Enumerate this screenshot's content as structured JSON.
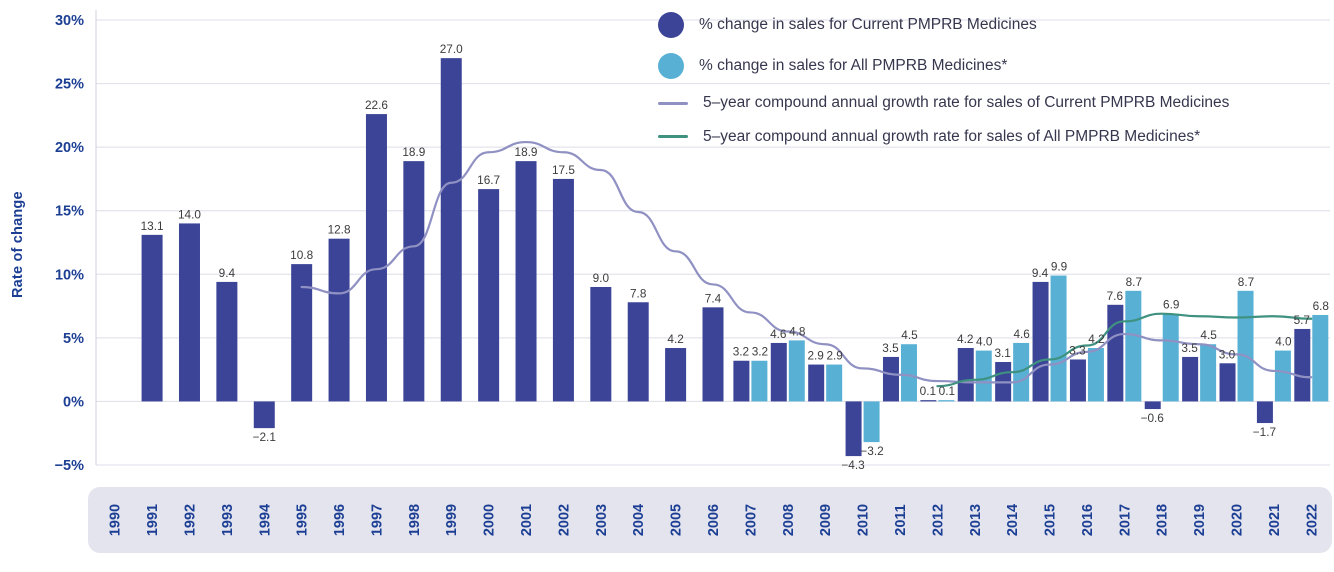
{
  "figure": {
    "ylabel": "Rate of change"
  },
  "colors": {
    "current_bar": "#3b4496",
    "all_bar": "#58b1d5",
    "current_line": "#9091c3",
    "all_line": "#3f9180",
    "axis_text": "#1c3f94",
    "gridline": "#dedee8",
    "band": "#e4e4ef",
    "value_label": "#3c3c3c"
  },
  "legend": {
    "items": [
      {
        "label": "% change in sales for Current PMPRB Medicines",
        "marker": "circle",
        "color": "#3b4496"
      },
      {
        "label": "% change in sales for All PMPRB Medicines*",
        "marker": "circle",
        "color": "#58b1d5"
      },
      {
        "label": "5–year compound annual growth rate for sales of Current PMPRB Medicines",
        "marker": "line",
        "color": "#9091c3"
      },
      {
        "label": "5–year compound annual growth rate for sales of All PMPRB Medicines*",
        "marker": "line",
        "color": "#3f9180"
      }
    ]
  },
  "chart_data": {
    "type": "bar",
    "title": "",
    "xlabel": "",
    "ylabel": "Rate of change",
    "ylim": [
      -5,
      30
    ],
    "grid": true,
    "legend_position": "top-right",
    "yticks": [
      {
        "value": 30,
        "label": "30%"
      },
      {
        "value": 25,
        "label": "25%"
      },
      {
        "value": 20,
        "label": "20%"
      },
      {
        "value": 15,
        "label": "15%"
      },
      {
        "value": 10,
        "label": "10%"
      },
      {
        "value": 5,
        "label": "5%"
      },
      {
        "value": 0,
        "label": "0%"
      },
      {
        "value": -5,
        "label": "−5%"
      }
    ],
    "categories": [
      "1990",
      "1991",
      "1992",
      "1993",
      "1994",
      "1995",
      "1996",
      "1997",
      "1998",
      "1999",
      "2000",
      "2001",
      "2002",
      "2003",
      "2004",
      "2005",
      "2006",
      "2007",
      "2008",
      "2009",
      "2010",
      "2011",
      "2012",
      "2013",
      "2014",
      "2015",
      "2016",
      "2017",
      "2018",
      "2019",
      "2020",
      "2021",
      "2022"
    ],
    "series": [
      {
        "name": "% change in sales for Current PMPRB Medicines",
        "type": "bar",
        "color": "#3b4496",
        "values": [
          null,
          13.1,
          14.0,
          9.4,
          -2.1,
          10.8,
          12.8,
          22.6,
          18.9,
          27.0,
          16.7,
          18.9,
          17.5,
          9.0,
          7.8,
          4.2,
          7.4,
          3.2,
          4.6,
          2.9,
          -4.3,
          3.5,
          0.1,
          4.2,
          3.1,
          9.4,
          3.3,
          7.6,
          -0.6,
          3.5,
          3.0,
          -1.7,
          5.7
        ]
      },
      {
        "name": "% change in sales for All PMPRB Medicines*",
        "type": "bar",
        "color": "#58b1d5",
        "values": [
          null,
          null,
          null,
          null,
          null,
          null,
          null,
          null,
          null,
          null,
          null,
          null,
          null,
          null,
          null,
          null,
          null,
          3.2,
          4.8,
          2.9,
          -3.2,
          4.5,
          0.1,
          4.0,
          4.6,
          9.9,
          4.2,
          8.7,
          6.9,
          4.5,
          8.7,
          4.0,
          6.8
        ]
      },
      {
        "name": "5–year compound annual growth rate for sales of Current PMPRB Medicines",
        "type": "line",
        "color": "#9091c3",
        "values": [
          null,
          null,
          null,
          null,
          null,
          9.0,
          8.5,
          10.4,
          12.2,
          17.2,
          19.6,
          20.4,
          19.6,
          18.2,
          14.9,
          11.8,
          9.2,
          7.0,
          5.5,
          4.5,
          2.6,
          2.1,
          1.6,
          1.5,
          1.5,
          2.9,
          3.9,
          5.3,
          4.8,
          4.5,
          3.7,
          2.4,
          1.9
        ]
      },
      {
        "name": "5–year compound annual growth rate for sales of All PMPRB Medicines*",
        "type": "line",
        "color": "#3f9180",
        "values": [
          null,
          null,
          null,
          null,
          null,
          null,
          null,
          null,
          null,
          null,
          null,
          null,
          null,
          null,
          null,
          null,
          null,
          null,
          null,
          null,
          null,
          null,
          1.2,
          1.7,
          2.3,
          3.3,
          4.4,
          6.3,
          6.9,
          6.7,
          6.6,
          6.7,
          6.5
        ]
      }
    ]
  }
}
